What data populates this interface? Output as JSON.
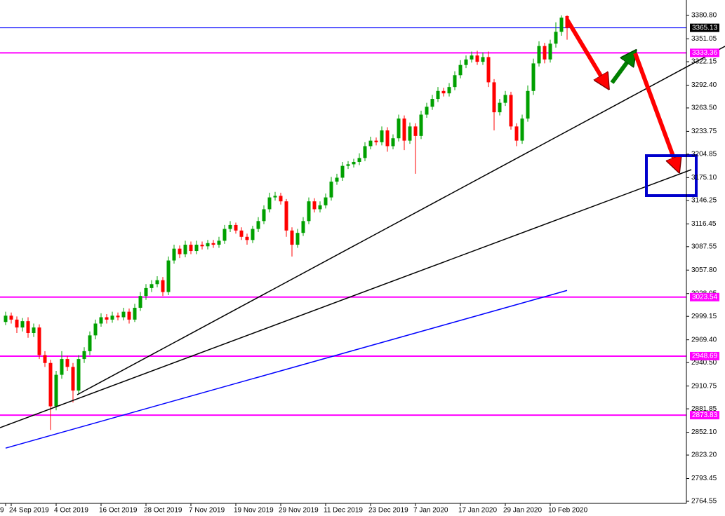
{
  "chart_data": {
    "type": "candlestick",
    "categories": [
      "9",
      "24 Sep 2019",
      null,
      null,
      null,
      null,
      null,
      null,
      null,
      "4 Oct 2019",
      null,
      null,
      null,
      null,
      null,
      null,
      null,
      "16 Oct 2019",
      null,
      null,
      null,
      null,
      null,
      null,
      null,
      "28 Oct 2019",
      null,
      null,
      null,
      null,
      null,
      null,
      null,
      "7 Nov 2019",
      null,
      null,
      null,
      null,
      null,
      null,
      null,
      "19 Nov 2019",
      null,
      null,
      null,
      null,
      null,
      null,
      null,
      "29 Nov 2019",
      null,
      null,
      null,
      null,
      null,
      null,
      null,
      "11 Dec 2019",
      null,
      null,
      null,
      null,
      null,
      null,
      null,
      "23 Dec 2019",
      null,
      null,
      null,
      null,
      null,
      null,
      null,
      "7 Jan 2020",
      null,
      null,
      null,
      null,
      null,
      null,
      null,
      "17 Jan 2020",
      null,
      null,
      null,
      null,
      null,
      null,
      null,
      "29 Jan 2020",
      null,
      null,
      null,
      null,
      null,
      null,
      null,
      "10 Feb 2020",
      null,
      null,
      null
    ],
    "open": [
      2992,
      3000,
      2995,
      2985,
      2993,
      2978,
      2985,
      2950,
      2940,
      2885,
      2925,
      2945,
      2935,
      2905,
      2945,
      2955,
      2975,
      2990,
      2998,
      2995,
      3000,
      2998,
      3005,
      2995,
      3010,
      3025,
      3035,
      3040,
      3045,
      3030,
      3070,
      3085,
      3078,
      3090,
      3082,
      3090,
      3088,
      3092,
      3090,
      3095,
      3110,
      3115,
      3108,
      3100,
      3096,
      3110,
      3120,
      3135,
      3150,
      3152,
      3145,
      3108,
      3090,
      3105,
      3120,
      3145,
      3135,
      3140,
      3150,
      3170,
      3175,
      3190,
      3192,
      3195,
      3200,
      3215,
      3222,
      3220,
      3235,
      3215,
      3225,
      3250,
      3222,
      3240,
      3228,
      3255,
      3265,
      3275,
      3285,
      3282,
      3290,
      3305,
      3318,
      3325,
      3330,
      3322,
      3328,
      3296,
      3258,
      3270,
      3280,
      3240,
      3222,
      3250,
      3285,
      3320,
      3342,
      3325,
      3345,
      3360,
      3380
    ],
    "high": [
      3005,
      3004,
      2999,
      2997,
      2998,
      2990,
      2989,
      2955,
      2944,
      2930,
      2955,
      2949,
      2940,
      2950,
      2960,
      2980,
      2995,
      3003,
      3002,
      3005,
      3004,
      3010,
      3009,
      3015,
      3030,
      3040,
      3045,
      3050,
      3049,
      3075,
      3090,
      3089,
      3095,
      3094,
      3095,
      3094,
      3096,
      3096,
      3100,
      3115,
      3120,
      3118,
      3112,
      3104,
      3114,
      3125,
      3140,
      3156,
      3157,
      3156,
      3148,
      3112,
      3110,
      3125,
      3150,
      3149,
      3145,
      3155,
      3176,
      3180,
      3195,
      3196,
      3199,
      3206,
      3220,
      3227,
      3226,
      3240,
      3239,
      3230,
      3255,
      3254,
      3245,
      3244,
      3260,
      3270,
      3280,
      3290,
      3289,
      3295,
      3310,
      3324,
      3330,
      3335,
      3336,
      3334,
      3335,
      3300,
      3275,
      3285,
      3284,
      3244,
      3255,
      3292,
      3326,
      3348,
      3346,
      3350,
      3372,
      3381,
      3381
    ],
    "low": [
      2988,
      2990,
      2978,
      2980,
      2972,
      2973,
      2945,
      2935,
      2855,
      2880,
      2920,
      2930,
      2890,
      2900,
      2940,
      2950,
      2970,
      2986,
      2990,
      2991,
      2994,
      2994,
      2990,
      2992,
      3006,
      3020,
      3030,
      3036,
      3025,
      3026,
      3066,
      3073,
      3074,
      3078,
      3078,
      3084,
      3084,
      3086,
      3086,
      3091,
      3106,
      3104,
      3096,
      3090,
      3092,
      3106,
      3116,
      3131,
      3146,
      3141,
      3100,
      3075,
      3086,
      3101,
      3116,
      3131,
      3131,
      3136,
      3146,
      3166,
      3171,
      3186,
      3188,
      3191,
      3196,
      3211,
      3216,
      3216,
      3208,
      3211,
      3221,
      3210,
      3218,
      3180,
      3224,
      3251,
      3261,
      3271,
      3278,
      3278,
      3286,
      3301,
      3314,
      3321,
      3318,
      3318,
      3290,
      3235,
      3254,
      3266,
      3236,
      3215,
      3218,
      3246,
      3280,
      3316,
      3320,
      3321,
      3340,
      3355,
      3350
    ],
    "close": [
      3000,
      2995,
      2985,
      2993,
      2978,
      2985,
      2950,
      2940,
      2885,
      2925,
      2945,
      2935,
      2905,
      2945,
      2955,
      2975,
      2990,
      2998,
      2995,
      3000,
      2998,
      3005,
      2995,
      3010,
      3025,
      3035,
      3040,
      3045,
      3030,
      3070,
      3085,
      3078,
      3090,
      3082,
      3090,
      3088,
      3092,
      3090,
      3095,
      3110,
      3115,
      3108,
      3100,
      3096,
      3110,
      3120,
      3135,
      3150,
      3152,
      3145,
      3108,
      3090,
      3105,
      3120,
      3145,
      3135,
      3140,
      3150,
      3170,
      3175,
      3190,
      3192,
      3195,
      3200,
      3215,
      3222,
      3220,
      3235,
      3215,
      3225,
      3250,
      3222,
      3240,
      3228,
      3255,
      3265,
      3275,
      3285,
      3282,
      3290,
      3305,
      3318,
      3325,
      3330,
      3322,
      3328,
      3296,
      3258,
      3270,
      3280,
      3240,
      3222,
      3250,
      3285,
      3320,
      3342,
      3325,
      3345,
      3360,
      3378,
      3365
    ],
    "up_color": "#00a000",
    "down_color": "#ff0000",
    "ma_values": [
      2832,
      2834,
      2836,
      2838,
      2840,
      2842,
      2844,
      2846,
      2848,
      2850,
      2852,
      2854,
      2856,
      2858,
      2860,
      2862,
      2864,
      2866,
      2868,
      2870,
      2872,
      2874,
      2876,
      2878,
      2880,
      2882,
      2884,
      2886,
      2888,
      2890,
      2892,
      2894,
      2896,
      2898,
      2900,
      2902,
      2904,
      2906,
      2908,
      2910,
      2912,
      2914,
      2916,
      2918,
      2920,
      2922,
      2924,
      2926,
      2928,
      2930,
      2932,
      2934,
      2936,
      2938,
      2940,
      2942,
      2944,
      2946,
      2948,
      2950,
      2952,
      2954,
      2956,
      2958,
      2960,
      2962,
      2964,
      2966,
      2968,
      2970,
      2972,
      2974,
      2976,
      2978,
      2980,
      2982,
      2984,
      2986,
      2988,
      2990,
      2992,
      2994,
      2996,
      2998,
      3000,
      3002,
      3004,
      3006,
      3008,
      3010,
      3012,
      3014,
      3016,
      3018,
      3020,
      3022,
      3024,
      3026,
      3028,
      3030,
      3032
    ],
    "ma_color": "#0000ff",
    "price_lines": [
      {
        "value": 3365.13,
        "color": "#0000ff",
        "label_bg": "#000000"
      },
      {
        "value": 3333.36,
        "color": "#ff00ff",
        "label_bg": "#ff00ff"
      },
      {
        "value": 3023.54,
        "color": "#ff00ff",
        "label_bg": "#ff00ff"
      },
      {
        "value": 2948.69,
        "color": "#ff00ff",
        "label_bg": "#ff00ff"
      },
      {
        "value": 2873.83,
        "color": "#ff00ff",
        "label_bg": "#ff00ff"
      }
    ],
    "ylim": [
      2761.9,
      3400.4
    ],
    "yticks": [
      {
        "value": 3380.8,
        "label": "3380.80"
      },
      3351.05,
      3322.15,
      {
        "value": 3292.4,
        "label": "3292.40"
      },
      {
        "value": 3263.5,
        "label": "3263.50"
      },
      3233.75,
      3204.85,
      {
        "value": 3175.1,
        "label": "3175.10"
      },
      3146.25,
      3116.45,
      3087.55,
      {
        "value": 3057.8,
        "label": "3057.80"
      },
      3028.05,
      2999.15,
      {
        "value": 2969.4,
        "label": "2969.40"
      },
      {
        "value": 2940.5,
        "label": "2940.50"
      },
      2910.75,
      2881.85,
      {
        "value": 2852.1,
        "label": "2852.10"
      },
      {
        "value": 2823.2,
        "label": "2823.20"
      },
      2793.45,
      2764.55
    ]
  }
}
